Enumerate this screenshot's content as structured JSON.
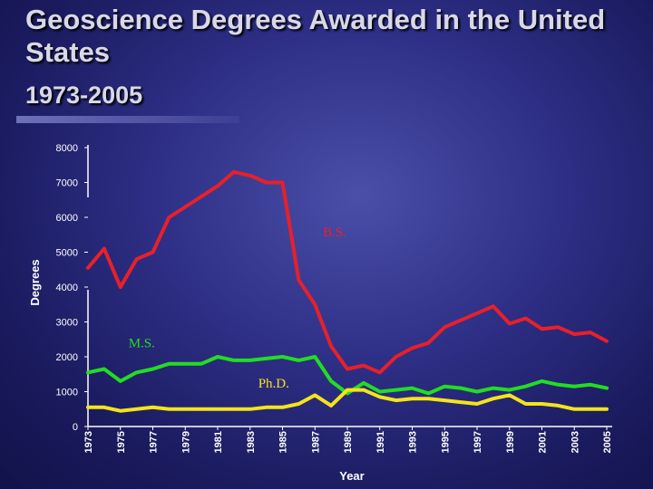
{
  "title": "Geoscience Degrees Awarded in the United States",
  "subtitle": "1973-2005",
  "chart_data": {
    "type": "line",
    "title": "Geoscience Degrees Awarded in the United States 1973-2005",
    "xlabel": "Year",
    "ylabel": "Degrees",
    "ylim": [
      0,
      8000
    ],
    "grid": false,
    "x": [
      1973,
      1974,
      1975,
      1976,
      1977,
      1978,
      1979,
      1980,
      1981,
      1982,
      1983,
      1984,
      1985,
      1986,
      1987,
      1988,
      1989,
      1990,
      1991,
      1992,
      1993,
      1994,
      1995,
      1996,
      1997,
      1998,
      1999,
      2000,
      2001,
      2002,
      2003,
      2004,
      2005
    ],
    "x_ticks": [
      "1973",
      "1975",
      "1977",
      "1979",
      "1981",
      "1983",
      "1985",
      "1987",
      "1989",
      "1991",
      "1993",
      "1995",
      "1997",
      "1999",
      "2001",
      "2003",
      "2005"
    ],
    "y_ticks": [
      "0",
      "1000",
      "2000",
      "3000",
      "4000",
      "5000",
      "6000",
      "7000",
      "8000"
    ],
    "series": [
      {
        "name": "B.S.",
        "color": "#e8202a",
        "values": [
          4550,
          5100,
          4000,
          4800,
          5000,
          6000,
          6300,
          6600,
          6900,
          7300,
          7200,
          7000,
          7000,
          4200,
          3500,
          2300,
          1650,
          1750,
          1550,
          2000,
          2250,
          2400,
          2850,
          3050,
          3250,
          3450,
          2950,
          3100,
          2800,
          2850,
          2650,
          2700,
          2450
        ]
      },
      {
        "name": "M.S.",
        "color": "#22dd22",
        "values": [
          1550,
          1650,
          1300,
          1550,
          1650,
          1800,
          1800,
          1800,
          2000,
          1900,
          1900,
          1950,
          2000,
          1900,
          2000,
          1300,
          950,
          1250,
          1000,
          1050,
          1100,
          950,
          1150,
          1100,
          1000,
          1100,
          1050,
          1150,
          1300,
          1200,
          1150,
          1200,
          1100
        ]
      },
      {
        "name": "Ph.D.",
        "color": "#f4e41a",
        "values": [
          550,
          550,
          450,
          500,
          550,
          500,
          500,
          500,
          500,
          500,
          500,
          550,
          550,
          650,
          900,
          600,
          1050,
          1050,
          850,
          750,
          800,
          800,
          750,
          700,
          650,
          800,
          900,
          650,
          650,
          600,
          500,
          500,
          500
        ]
      }
    ]
  }
}
